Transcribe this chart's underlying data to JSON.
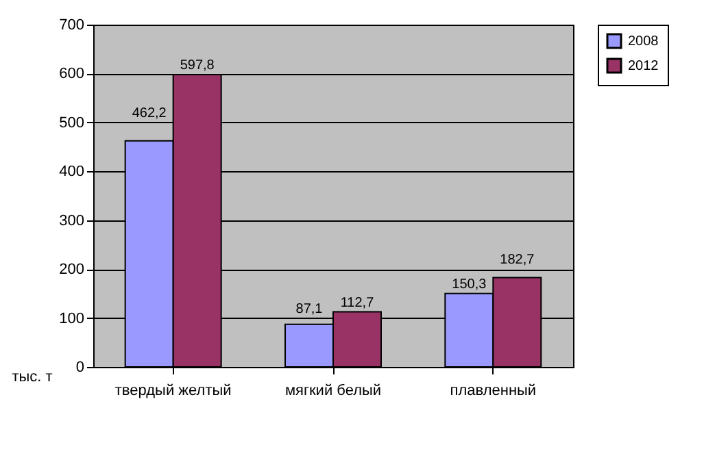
{
  "chart_data": {
    "type": "bar",
    "categories": [
      "твердый желтый",
      "мягкий белый",
      "плавленный"
    ],
    "ylabel": "тыс. т",
    "series": [
      {
        "name": "2008",
        "color": "#9999ff",
        "values": [
          462.2,
          87.1,
          150.3
        ],
        "value_labels": [
          "462,2",
          "87,1",
          "150,3"
        ]
      },
      {
        "name": "2012",
        "color": "#993366",
        "values": [
          597.8,
          112.7,
          182.7
        ],
        "value_labels": [
          "597,8",
          "112,7",
          "182,7"
        ]
      }
    ],
    "ylim": [
      0,
      700
    ],
    "yticks": [
      0,
      100,
      200,
      300,
      400,
      500,
      600,
      700
    ],
    "grid": "y",
    "legend": "right"
  }
}
